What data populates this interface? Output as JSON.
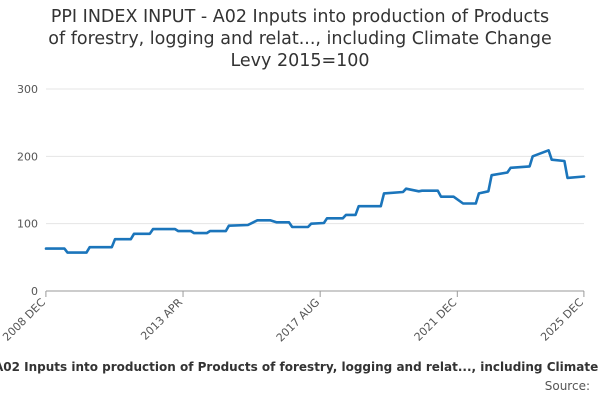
{
  "chart_data": {
    "type": "line",
    "title_lines": [
      "PPI INDEX INPUT - A02 Inputs into production of Products",
      "of forestry, logging and relat..., including Climate Change",
      "Levy 2015=100"
    ],
    "xlabel": "A02 Inputs into production of Products of forestry, logging and relat..., including Climate",
    "ylabel": "",
    "source": "Source:",
    "ylim": [
      0,
      300
    ],
    "y_ticks": [
      "0",
      "100",
      "200",
      "300"
    ],
    "x_ticks": [
      "2008 DEC",
      "2013 APR",
      "2017 AUG",
      "2021 DEC",
      "2025 DEC"
    ],
    "grid": true,
    "series_color": "#1b75bb",
    "series": [
      {
        "x": [
          2008.92,
          2009.5,
          2009.6,
          2010.2,
          2010.3,
          2011.0,
          2011.1,
          2011.6,
          2011.7,
          2012.2,
          2012.3,
          2013.0,
          2013.1,
          2013.5,
          2013.6,
          2014.0,
          2014.1,
          2014.6,
          2014.7,
          2015.3,
          2015.6,
          2016.0,
          2016.2,
          2016.6,
          2016.7,
          2017.2,
          2017.3,
          2017.7,
          2017.8,
          2018.3,
          2018.4,
          2018.7,
          2018.8,
          2019.5,
          2019.6,
          2020.2,
          2020.3,
          2020.7,
          2020.8,
          2021.3,
          2021.4,
          2021.8,
          2022.1,
          2022.5,
          2022.6,
          2022.9,
          2023.0,
          2023.5,
          2023.6,
          2024.2,
          2024.3,
          2024.8,
          2024.9,
          2025.3,
          2025.4,
          2025.92
        ],
        "y": [
          63,
          63,
          57,
          57,
          65,
          65,
          77,
          77,
          85,
          85,
          92,
          92,
          89,
          89,
          86,
          86,
          89,
          89,
          97,
          98,
          105,
          105,
          102,
          102,
          95,
          95,
          100,
          101,
          108,
          108,
          113,
          113,
          126,
          126,
          145,
          147,
          152,
          148,
          149,
          149,
          140,
          140,
          130,
          130,
          145,
          148,
          172,
          176,
          183,
          185,
          200,
          209,
          195,
          193,
          168,
          170
        ]
      }
    ]
  }
}
